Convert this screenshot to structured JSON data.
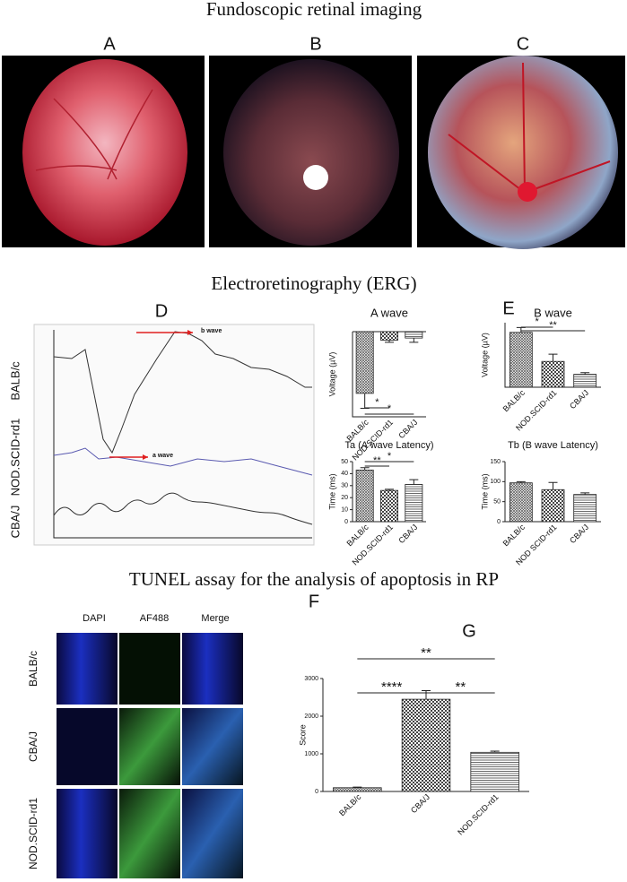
{
  "sections": [
    "Fundoscopic retinal imaging",
    "Electroretinography (ERG)",
    "TUNEL assay for the analysis of apoptosis in RP"
  ],
  "fundus_panels": [
    "A",
    "B",
    "C"
  ],
  "erg": {
    "panel": "D",
    "traces": [
      "BALB/c",
      "NOD.SCID-rd1",
      "CBA/J"
    ],
    "annotations": [
      "b wave",
      "a wave"
    ]
  },
  "panel_E": "E",
  "tunel": {
    "panel": "F",
    "columns": [
      "DAPI",
      "AF488",
      "Merge"
    ],
    "rows": [
      "BALB/c",
      "CBA/J",
      "NOD.SCID-rd1"
    ]
  },
  "panel_G": "G",
  "chart_data": [
    {
      "type": "bar",
      "title": "A wave",
      "ylabel": "Voltage (µV)",
      "categories": [
        "BALB/c",
        "NOD.SCID-rd1",
        "CBA/J"
      ],
      "series": [
        {
          "values": [
            -29,
            -4,
            -3
          ],
          "errors": [
            7,
            1,
            2
          ]
        }
      ],
      "ylim": [
        -40,
        0
      ],
      "significance": [
        "*",
        "*"
      ]
    },
    {
      "type": "bar",
      "title": "B wave",
      "ylabel": "Voltage (µV)",
      "categories": [
        "BALB/c",
        "NOD.SCID-rd1",
        "CBA/J"
      ],
      "series": [
        {
          "values": [
            68,
            32,
            16
          ],
          "errors": [
            6,
            9,
            2
          ]
        }
      ],
      "ylim": [
        0,
        80
      ],
      "significance": [
        "*",
        "**"
      ]
    },
    {
      "type": "bar",
      "title": "Ta (A wave Latency)",
      "ylabel": "Time (ms)",
      "categories": [
        "BALB/c",
        "NOD.SCID-rd1",
        "CBA/J"
      ],
      "series": [
        {
          "values": [
            43,
            26,
            31
          ],
          "errors": [
            2,
            1,
            4
          ]
        }
      ],
      "ylim": [
        0,
        50
      ],
      "yticks": [
        0,
        10,
        20,
        30,
        40,
        50
      ],
      "significance": [
        "**",
        "*"
      ]
    },
    {
      "type": "bar",
      "title": "Tb (B wave Latency)",
      "ylabel": "Time (ms)",
      "categories": [
        "BALB/c",
        "NOD SCID-rd1",
        "CBA/J"
      ],
      "series": [
        {
          "values": [
            97,
            80,
            68
          ],
          "errors": [
            3,
            18,
            4
          ]
        }
      ],
      "ylim": [
        0,
        150
      ],
      "yticks": [
        0,
        50,
        100,
        150
      ]
    },
    {
      "type": "bar",
      "ylabel": "Score",
      "categories": [
        "BALB/c",
        "CBA/J",
        "NOD.SCID-rd1"
      ],
      "series": [
        {
          "values": [
            100,
            2450,
            1040
          ],
          "errors": [
            15,
            230,
            30
          ]
        }
      ],
      "ylim": [
        0,
        3000
      ],
      "yticks": [
        0,
        1000,
        2000,
        3000
      ],
      "significance": [
        "**",
        "****",
        "**"
      ]
    }
  ]
}
